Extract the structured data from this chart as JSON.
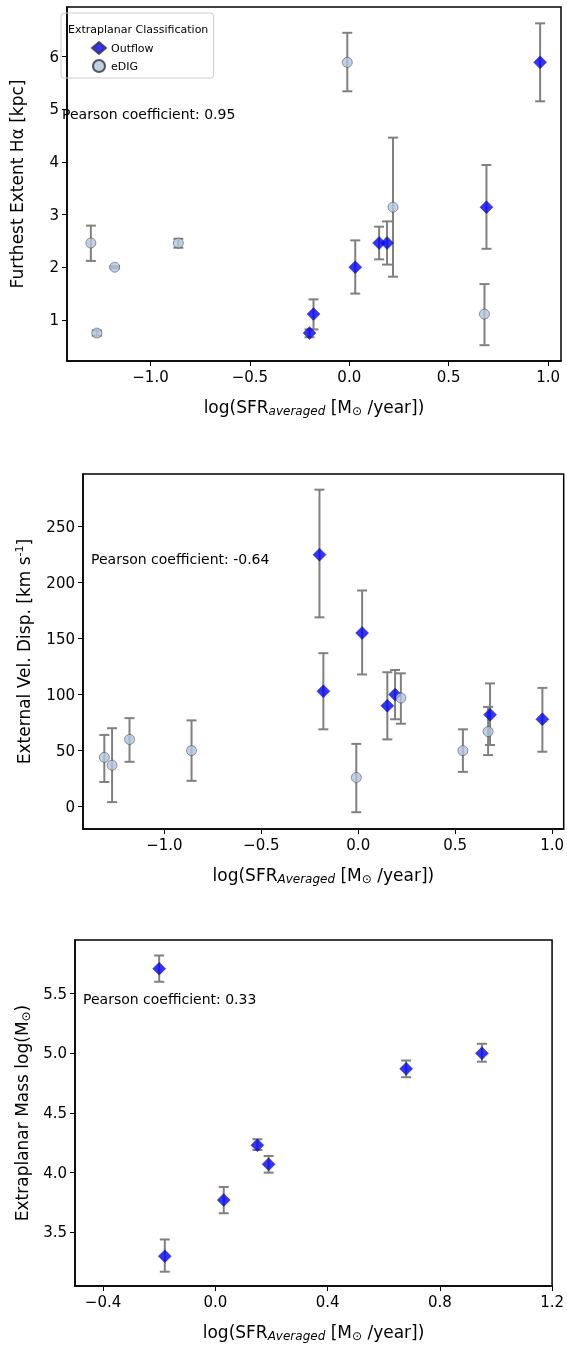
{
  "chart_data": [
    {
      "type": "scatter",
      "xlabel": "log(SFR$_{averaged}$ [M$_{⊙}$ /year])",
      "ylabel": "Furthest Extent Hα [kpc]",
      "legend_title": "Extraplanar Classification",
      "legend": "top left",
      "annotations": [
        "Pearson coefficient: 0.95"
      ],
      "xlim": [
        -1.42,
        1.065
      ],
      "ylim": [
        0.22,
        6.94
      ],
      "xticks": [
        {
          "value": -1,
          "label": "−1.0"
        },
        {
          "value": -0.5,
          "label": "−0.5"
        },
        {
          "value": 0,
          "label": "0.0"
        },
        0.5,
        {
          "value": 1,
          "label": "1.0"
        }
      ],
      "yticks": [
        1,
        2,
        3,
        4,
        5,
        6
      ],
      "series": [
        {
          "name": "Outflow",
          "color": "#0000ff",
          "marker": "diamond",
          "x": [
            -0.2,
            -0.18,
            0.03,
            0.15,
            0.19,
            0.69,
            0.96
          ],
          "values": [
            0.75,
            1.11,
            2.0,
            2.46,
            2.46,
            3.14,
            5.89
          ],
          "errors": [
            [
              0.67,
              0.82
            ],
            [
              0.82,
              1.39
            ],
            [
              1.5,
              2.51
            ],
            [
              2.15,
              2.77
            ],
            [
              2.05,
              2.87
            ],
            [
              2.35,
              3.94
            ],
            [
              5.15,
              6.63
            ]
          ]
        },
        {
          "name": "eDIG",
          "color": "#b0c4de",
          "marker": "circle",
          "x": [
            -1.3,
            -1.27,
            -1.18,
            -0.86,
            -0.01,
            0.22,
            0.68
          ],
          "values": [
            2.46,
            0.75,
            2.0,
            2.46,
            5.89,
            3.14,
            1.11
          ],
          "errors": [
            [
              2.12,
              2.79
            ],
            [
              0.7,
              0.8
            ],
            [
              1.98,
              2.02
            ],
            [
              2.37,
              2.54
            ],
            [
              5.34,
              6.45
            ],
            [
              1.82,
              4.46
            ],
            [
              0.52,
              1.68
            ]
          ]
        }
      ]
    },
    {
      "type": "scatter",
      "xlabel": "log(SFR$_{Averaged}$ [M$_{⊙}$ /year])",
      "ylabel": "External Vel. Disp. [km s$^{-1}$]",
      "annotations": [
        "Pearson coefficient: -0.64"
      ],
      "xlim": [
        -1.42,
        1.06
      ],
      "ylim": [
        -20,
        297
      ],
      "xticks": [
        {
          "value": -1,
          "label": "−1.0"
        },
        {
          "value": -0.5,
          "label": "−0.5"
        },
        {
          "value": 0,
          "label": "0.0"
        },
        0.5,
        {
          "value": 1,
          "label": "1.0"
        }
      ],
      "yticks": [
        0,
        50,
        100,
        150,
        200,
        250
      ],
      "series": [
        {
          "color": "#0000ff",
          "marker": "diamond",
          "x": [
            -0.2,
            -0.18,
            0.02,
            0.15,
            0.19,
            0.68,
            0.95
          ],
          "values": [
            225,
            103,
            155,
            90,
            100,
            82,
            78
          ],
          "errors": [
            [
              169,
              283
            ],
            [
              69,
              137
            ],
            [
              118,
              193
            ],
            [
              60,
              120
            ],
            [
              78,
              122
            ],
            [
              55,
              110
            ],
            [
              49,
              106
            ]
          ]
        },
        {
          "color": "#b0c4de",
          "marker": "circle",
          "x": [
            -1.31,
            -1.27,
            -1.18,
            -0.86,
            -0.01,
            0.22,
            0.54,
            0.67
          ],
          "values": [
            44,
            37,
            60,
            50,
            26,
            97,
            50,
            67
          ],
          "errors": [
            [
              22,
              64
            ],
            [
              4,
              70
            ],
            [
              40,
              79
            ],
            [
              23,
              77
            ],
            [
              -5,
              56
            ],
            [
              74,
              119
            ],
            [
              31,
              69
            ],
            [
              46,
              89
            ]
          ]
        }
      ]
    },
    {
      "type": "scatter",
      "xlabel": "log(SFR$_{Averaged}$ [M$_{⊙}$ /year])",
      "ylabel": "Extraplanar Mass log(M$_{⊙}$)",
      "annotations": [
        "Pearson coefficient: 0.33"
      ],
      "xlim": [
        -0.5,
        1.2
      ],
      "ylim": [
        3.05,
        5.95
      ],
      "xticks": [
        {
          "value": -0.4,
          "label": "−0.4"
        },
        {
          "value": 0,
          "label": "0.0"
        },
        0.4,
        0.8,
        1.2
      ],
      "yticks": [
        3.5,
        {
          "value": 4,
          "label": "4.0"
        },
        4.5,
        {
          "value": 5,
          "label": "5.0"
        },
        5.5
      ],
      "series": [
        {
          "color": "#0000ff",
          "marker": "diamond",
          "x": [
            -0.2,
            -0.18,
            0.03,
            0.15,
            0.19,
            0.68,
            0.95
          ],
          "values": [
            5.71,
            3.3,
            3.77,
            4.23,
            4.07,
            4.87,
            5.0
          ],
          "errors": [
            [
              5.6,
              5.82
            ],
            [
              3.17,
              3.44
            ],
            [
              3.66,
              3.88
            ],
            [
              4.19,
              4.28
            ],
            [
              4.0,
              4.14
            ],
            [
              4.8,
              4.94
            ],
            [
              4.93,
              5.08
            ]
          ]
        }
      ]
    }
  ]
}
